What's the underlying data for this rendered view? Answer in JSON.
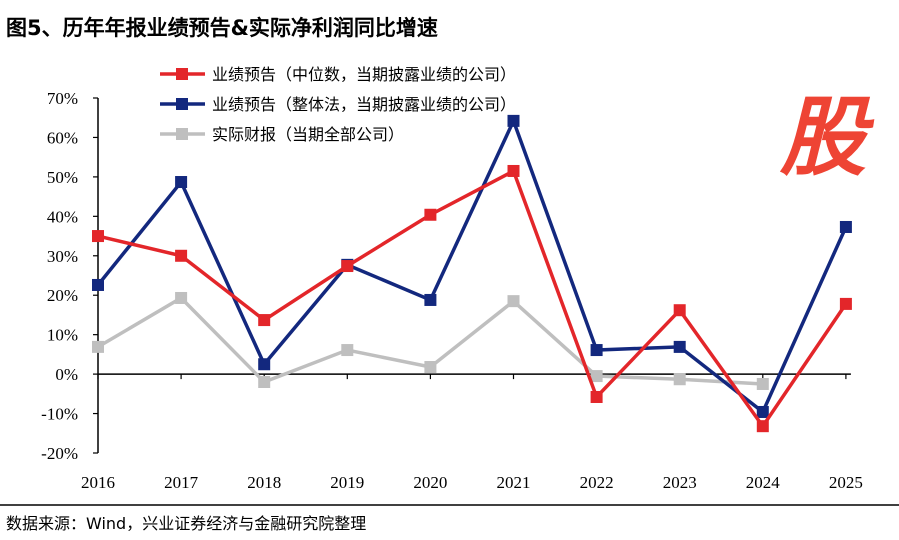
{
  "title": "图5、历年年报业绩预告&实际净利润同比增速",
  "source": "数据来源：Wind，兴业证券经济与金融研究院整理",
  "watermark": "股",
  "chart_data": {
    "type": "line",
    "title": "图5、历年年报业绩预告&实际净利润同比增速",
    "categories": [
      "2016",
      "2017",
      "2018",
      "2019",
      "2020",
      "2021",
      "2022",
      "2023",
      "2024",
      "2025"
    ],
    "ylim": [
      -20,
      70
    ],
    "yticks": [
      -20,
      -10,
      0,
      10,
      20,
      30,
      40,
      50,
      60,
      70
    ],
    "ytick_labels": [
      "-20%",
      "-10%",
      "0%",
      "10%",
      "20%",
      "30%",
      "40%",
      "50%",
      "60%",
      "70%"
    ],
    "grid": false,
    "legend_position": "top-left",
    "series": [
      {
        "name": "业绩预告（中位数，当期披露业绩的公司）",
        "color": "#e3262a",
        "values": [
          35.0,
          30.0,
          13.7,
          27.4,
          40.4,
          51.5,
          -5.8,
          16.2,
          -13.2,
          17.8
        ]
      },
      {
        "name": "业绩预告（整体法，当期披露业绩的公司）",
        "color": "#13287e",
        "values": [
          22.6,
          48.7,
          2.5,
          27.7,
          18.8,
          64.2,
          6.1,
          6.9,
          -9.6,
          37.3
        ]
      },
      {
        "name": "实际财报（当期全部公司）",
        "color": "#bfbfbf",
        "values": [
          6.9,
          19.3,
          -2.0,
          6.1,
          1.8,
          18.5,
          -0.5,
          -1.3,
          -2.5,
          null
        ]
      }
    ]
  }
}
